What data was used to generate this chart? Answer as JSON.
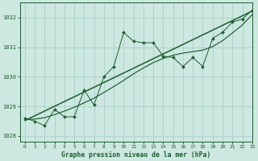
{
  "title": "Graphe pression niveau de la mer (hPa)",
  "background_color": "#cce8e0",
  "grid_color": "#aacfc8",
  "line_color": "#1e5c30",
  "xlim": [
    -0.5,
    23
  ],
  "ylim": [
    1027.8,
    1032.5
  ],
  "yticks": [
    1028,
    1029,
    1030,
    1031,
    1032
  ],
  "xticks": [
    0,
    1,
    2,
    3,
    4,
    5,
    6,
    7,
    8,
    9,
    10,
    11,
    12,
    13,
    14,
    15,
    16,
    17,
    18,
    19,
    20,
    21,
    22,
    23
  ],
  "jagged_x": [
    0,
    1,
    2,
    3,
    4,
    5,
    6,
    7,
    8,
    9,
    10,
    11,
    12,
    13,
    14,
    15,
    16,
    17,
    18,
    19,
    20,
    21,
    22,
    23
  ],
  "jagged_y": [
    1028.6,
    1028.5,
    1028.35,
    1028.9,
    1028.65,
    1028.65,
    1029.55,
    1029.05,
    1030.0,
    1030.35,
    1031.5,
    1031.2,
    1031.15,
    1031.15,
    1030.7,
    1030.65,
    1030.35,
    1030.65,
    1030.35,
    1031.3,
    1031.5,
    1031.85,
    1031.95,
    1032.25
  ],
  "smooth_x": [
    0,
    1,
    2,
    3,
    4,
    5,
    6,
    7,
    8,
    9,
    10,
    11,
    12,
    13,
    14,
    15,
    16,
    17,
    18,
    19,
    20,
    21,
    22,
    23
  ],
  "smooth_y": [
    1028.55,
    1028.57,
    1028.62,
    1028.72,
    1028.84,
    1028.97,
    1029.12,
    1029.28,
    1029.47,
    1029.67,
    1029.88,
    1030.1,
    1030.3,
    1030.48,
    1030.62,
    1030.73,
    1030.8,
    1030.85,
    1030.9,
    1031.02,
    1031.22,
    1031.48,
    1031.75,
    1032.1
  ],
  "trend_x": [
    0,
    23
  ],
  "trend_y": [
    1028.52,
    1032.22
  ]
}
